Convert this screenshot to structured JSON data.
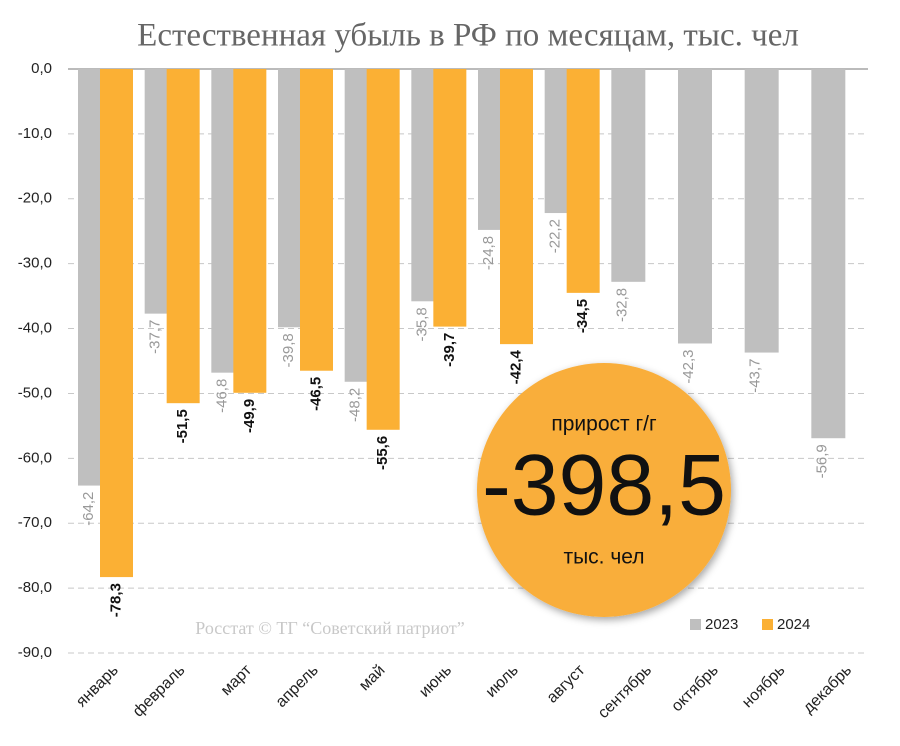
{
  "chart_data": {
    "type": "bar",
    "title": "Естественная убыль в РФ по месяцам, тыс. чел",
    "categories": [
      "январь",
      "февраль",
      "март",
      "апрель",
      "май",
      "июнь",
      "июль",
      "август",
      "сентябрь",
      "октябрь",
      "ноябрь",
      "декабрь"
    ],
    "series": [
      {
        "name": "2023",
        "color": "#bfbfbf",
        "values": [
          -64.2,
          -37.7,
          -46.8,
          -39.8,
          -48.2,
          -35.8,
          -24.8,
          -22.2,
          -32.8,
          -42.3,
          -43.7,
          -56.9
        ],
        "value_labels": [
          "-64,2",
          "-37,7",
          "-46,8",
          "-39,8",
          "-48,2",
          "-35,8",
          "-24,8",
          "-22,2",
          "-32,8",
          "-42,3",
          "-43,7",
          "-56,9"
        ]
      },
      {
        "name": "2024",
        "color": "#fbb034",
        "values": [
          -78.3,
          -51.5,
          -49.9,
          -46.5,
          -55.6,
          -39.7,
          -42.4,
          -34.5,
          null,
          null,
          null,
          null
        ],
        "value_labels": [
          "-78,3",
          "-51,5",
          "-49,9",
          "-46,5",
          "-55,6",
          "-39,7",
          "-42,4",
          "-34,5",
          null,
          null,
          null,
          null
        ]
      }
    ],
    "ylim": [
      -90,
      0
    ],
    "yticks": [
      {
        "value": 0,
        "label": "0,0"
      },
      {
        "value": -10,
        "label": "-10,0"
      },
      {
        "value": -20,
        "label": "-20,0"
      },
      {
        "value": -30,
        "label": "-30,0"
      },
      {
        "value": -40,
        "label": "-40,0"
      },
      {
        "value": -50,
        "label": "-50,0"
      },
      {
        "value": -60,
        "label": "-60,0"
      },
      {
        "value": -70,
        "label": "-70,0"
      },
      {
        "value": -80,
        "label": "-80,0"
      },
      {
        "value": -90,
        "label": "-90,0"
      }
    ],
    "grid": true,
    "legend": "bottom-right",
    "annotation": {
      "label": "прирост г/г",
      "value_label": "-398,5",
      "unit": "тыс. чел"
    },
    "source": "Росстат © ТГ “Советский патриот”"
  }
}
